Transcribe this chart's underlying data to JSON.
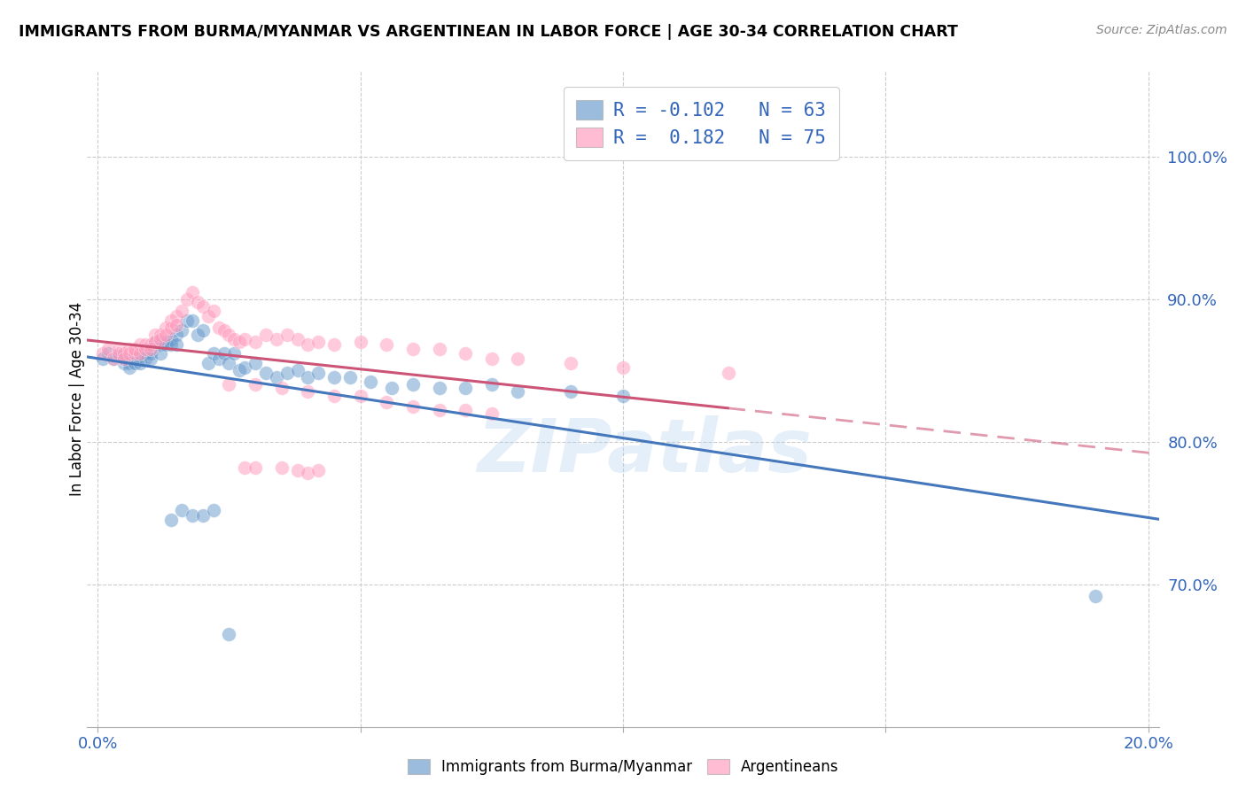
{
  "title": "IMMIGRANTS FROM BURMA/MYANMAR VS ARGENTINEAN IN LABOR FORCE | AGE 30-34 CORRELATION CHART",
  "source": "Source: ZipAtlas.com",
  "ylabel": "In Labor Force | Age 30-34",
  "right_yticks": [
    0.7,
    0.8,
    0.9,
    1.0
  ],
  "right_yticklabels": [
    "70.0%",
    "80.0%",
    "90.0%",
    "100.0%"
  ],
  "xticks": [
    0.0,
    0.05,
    0.1,
    0.15,
    0.2
  ],
  "xticklabels": [
    "0.0%",
    "",
    "",
    "",
    "20.0%"
  ],
  "xlim": [
    -0.002,
    0.202
  ],
  "ylim": [
    0.6,
    1.06
  ],
  "blue_R": -0.102,
  "blue_N": 63,
  "pink_R": 0.182,
  "pink_N": 75,
  "blue_color": "#6699CC",
  "pink_color": "#FF99BB",
  "blue_line_color": "#4477BB",
  "pink_line_color": "#CC5577",
  "blue_label": "Immigrants from Burma/Myanmar",
  "pink_label": "Argentineans",
  "watermark": "ZIPatlas",
  "blue_scatter_x": [
    0.001,
    0.002,
    0.003,
    0.004,
    0.005,
    0.005,
    0.006,
    0.006,
    0.007,
    0.007,
    0.008,
    0.008,
    0.009,
    0.009,
    0.01,
    0.01,
    0.011,
    0.012,
    0.012,
    0.013,
    0.013,
    0.014,
    0.014,
    0.015,
    0.015,
    0.016,
    0.017,
    0.018,
    0.019,
    0.02,
    0.021,
    0.022,
    0.023,
    0.024,
    0.025,
    0.026,
    0.027,
    0.028,
    0.03,
    0.032,
    0.034,
    0.036,
    0.038,
    0.04,
    0.042,
    0.045,
    0.048,
    0.052,
    0.056,
    0.06,
    0.065,
    0.07,
    0.075,
    0.08,
    0.09,
    0.1,
    0.014,
    0.016,
    0.018,
    0.02,
    0.022,
    0.19,
    0.025
  ],
  "blue_scatter_y": [
    0.858,
    0.862,
    0.858,
    0.86,
    0.855,
    0.858,
    0.855,
    0.852,
    0.858,
    0.855,
    0.86,
    0.855,
    0.858,
    0.862,
    0.862,
    0.858,
    0.87,
    0.868,
    0.862,
    0.87,
    0.868,
    0.872,
    0.868,
    0.875,
    0.868,
    0.878,
    0.885,
    0.885,
    0.875,
    0.878,
    0.855,
    0.862,
    0.858,
    0.862,
    0.855,
    0.862,
    0.85,
    0.852,
    0.855,
    0.848,
    0.845,
    0.848,
    0.85,
    0.845,
    0.848,
    0.845,
    0.845,
    0.842,
    0.838,
    0.84,
    0.838,
    0.838,
    0.84,
    0.835,
    0.835,
    0.832,
    0.745,
    0.752,
    0.748,
    0.748,
    0.752,
    0.692,
    0.665
  ],
  "pink_scatter_x": [
    0.001,
    0.002,
    0.003,
    0.004,
    0.004,
    0.005,
    0.005,
    0.006,
    0.006,
    0.007,
    0.007,
    0.008,
    0.008,
    0.009,
    0.009,
    0.01,
    0.01,
    0.011,
    0.011,
    0.012,
    0.012,
    0.013,
    0.013,
    0.014,
    0.014,
    0.015,
    0.015,
    0.016,
    0.017,
    0.018,
    0.019,
    0.02,
    0.021,
    0.022,
    0.023,
    0.024,
    0.025,
    0.026,
    0.027,
    0.028,
    0.03,
    0.032,
    0.034,
    0.036,
    0.038,
    0.04,
    0.042,
    0.045,
    0.05,
    0.055,
    0.06,
    0.065,
    0.07,
    0.075,
    0.08,
    0.09,
    0.1,
    0.12,
    0.025,
    0.03,
    0.035,
    0.04,
    0.045,
    0.05,
    0.055,
    0.06,
    0.065,
    0.07,
    0.075,
    0.028,
    0.03,
    0.035,
    0.038,
    0.04,
    0.042
  ],
  "pink_scatter_y": [
    0.862,
    0.865,
    0.858,
    0.865,
    0.862,
    0.862,
    0.858,
    0.865,
    0.862,
    0.862,
    0.865,
    0.868,
    0.862,
    0.868,
    0.865,
    0.868,
    0.865,
    0.875,
    0.87,
    0.875,
    0.872,
    0.88,
    0.875,
    0.885,
    0.88,
    0.888,
    0.882,
    0.892,
    0.9,
    0.905,
    0.898,
    0.895,
    0.888,
    0.892,
    0.88,
    0.878,
    0.875,
    0.872,
    0.87,
    0.872,
    0.87,
    0.875,
    0.872,
    0.875,
    0.872,
    0.868,
    0.87,
    0.868,
    0.87,
    0.868,
    0.865,
    0.865,
    0.862,
    0.858,
    0.858,
    0.855,
    0.852,
    0.848,
    0.84,
    0.84,
    0.838,
    0.835,
    0.832,
    0.832,
    0.828,
    0.825,
    0.822,
    0.822,
    0.82,
    0.782,
    0.782,
    0.782,
    0.78,
    0.778,
    0.78
  ]
}
